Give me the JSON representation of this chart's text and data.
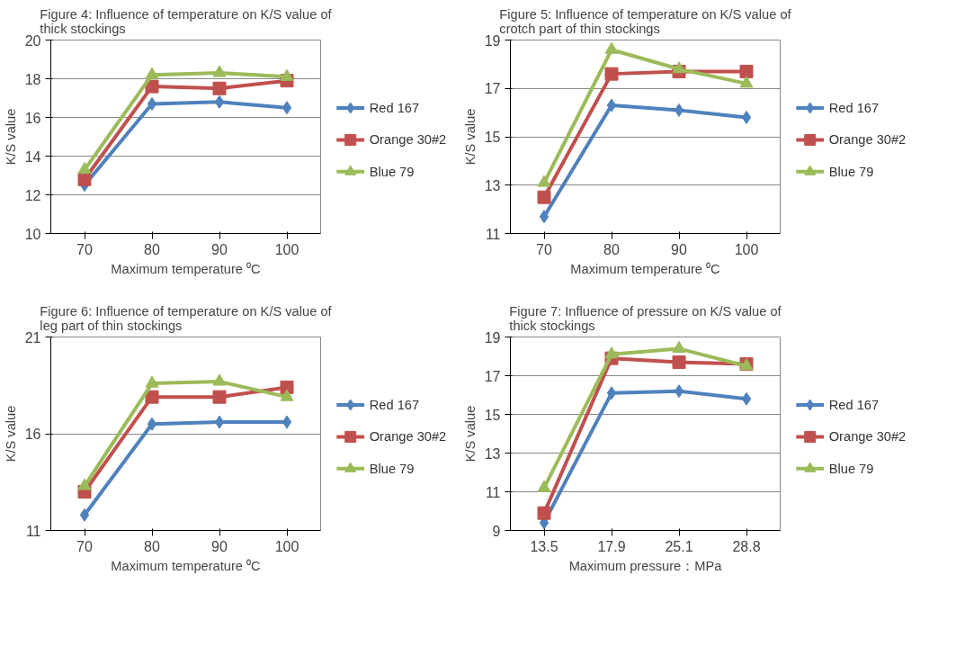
{
  "chart_data": [
    {
      "type": "line",
      "title": "Figure 4: Influence of temperature on K/S value of thick stockings",
      "xlabel": "Maximum temperature ⁰C",
      "ylabel": "K/S value",
      "categories": [
        "70",
        "80",
        "90",
        "100"
      ],
      "ylim": [
        10,
        20
      ],
      "yticks": [
        10,
        12,
        14,
        16,
        18,
        20
      ],
      "grid": "y",
      "legend": "right",
      "series": [
        {
          "name": "Red 167",
          "color": "#4f81bd",
          "marker": "diamond",
          "values": [
            12.5,
            16.7,
            16.8,
            16.5
          ]
        },
        {
          "name": "Orange 30#2",
          "color": "#c0504d",
          "marker": "square",
          "values": [
            12.8,
            17.6,
            17.5,
            17.9
          ]
        },
        {
          "name": "Blue 79",
          "color": "#9bbb59",
          "marker": "triangle",
          "values": [
            13.3,
            18.2,
            18.3,
            18.1
          ]
        }
      ]
    },
    {
      "type": "line",
      "title": "Figure 5: Influence of temperature on K/S value of crotch part of thin stockings",
      "xlabel": "Maximum temperature ⁰C",
      "ylabel": "K/S value",
      "categories": [
        "70",
        "80",
        "90",
        "100"
      ],
      "ylim": [
        11,
        19
      ],
      "yticks": [
        11,
        13,
        15,
        17,
        19
      ],
      "grid": "y",
      "legend": "right",
      "series": [
        {
          "name": "Red 167",
          "color": "#4f81bd",
          "marker": "diamond",
          "values": [
            11.7,
            16.3,
            16.1,
            15.8
          ]
        },
        {
          "name": "Orange 30#2",
          "color": "#c0504d",
          "marker": "square",
          "values": [
            12.5,
            17.6,
            17.7,
            17.7
          ]
        },
        {
          "name": "Blue 79",
          "color": "#9bbb59",
          "marker": "triangle",
          "values": [
            13.1,
            18.6,
            17.8,
            17.2
          ]
        }
      ]
    },
    {
      "type": "line",
      "title": "Figure 6: Influence of temperature on K/S value of leg part of thin stockings",
      "xlabel": "Maximum temperature ⁰C",
      "ylabel": "K/S value",
      "categories": [
        "70",
        "80",
        "90",
        "100"
      ],
      "ylim": [
        11,
        21
      ],
      "yticks": [
        11,
        16,
        21
      ],
      "grid": "y",
      "legend": "right",
      "series": [
        {
          "name": "Red 167",
          "color": "#4f81bd",
          "marker": "diamond",
          "values": [
            11.8,
            16.5,
            16.6,
            16.6
          ]
        },
        {
          "name": "Orange 30#2",
          "color": "#c0504d",
          "marker": "square",
          "values": [
            13.0,
            17.9,
            17.9,
            18.4
          ]
        },
        {
          "name": "Blue 79",
          "color": "#9bbb59",
          "marker": "triangle",
          "values": [
            13.3,
            18.6,
            18.7,
            17.9
          ]
        }
      ]
    },
    {
      "type": "line",
      "title": "Figure 7: Influence of pressure on K/S value of thick stockings",
      "xlabel": "Maximum pressure：MPa",
      "ylabel": "K/S value",
      "categories": [
        "13.5",
        "17.9",
        "25.1",
        "28.8"
      ],
      "ylim": [
        9,
        19
      ],
      "yticks": [
        9,
        11,
        13,
        15,
        17,
        19
      ],
      "grid": "y",
      "legend": "right",
      "series": [
        {
          "name": "Red 167",
          "color": "#4f81bd",
          "marker": "diamond",
          "values": [
            9.4,
            16.1,
            16.2,
            15.8
          ]
        },
        {
          "name": "Orange 30#2",
          "color": "#c0504d",
          "marker": "square",
          "values": [
            9.9,
            17.9,
            17.7,
            17.6
          ]
        },
        {
          "name": "Blue 79",
          "color": "#9bbb59",
          "marker": "triangle",
          "values": [
            11.2,
            18.1,
            18.4,
            17.5
          ]
        }
      ]
    }
  ]
}
